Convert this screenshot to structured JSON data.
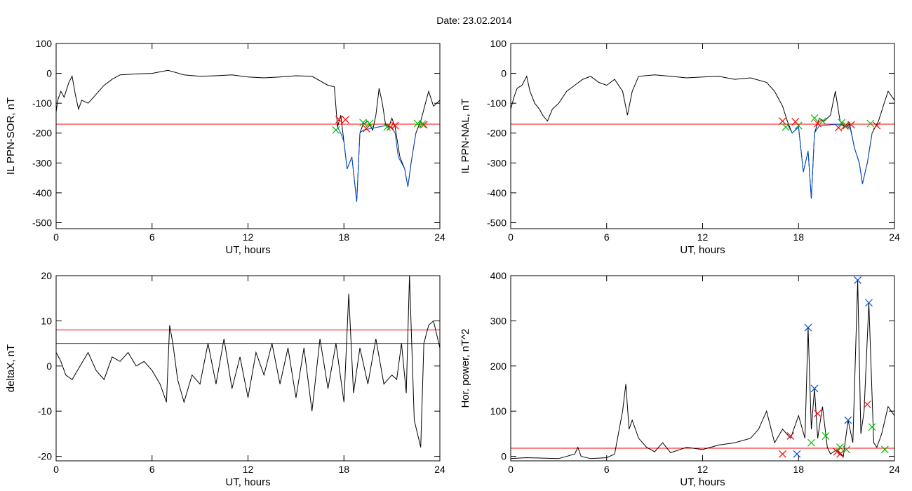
{
  "figure": {
    "title": "Date:  23.02.2014"
  },
  "chart_data": [
    {
      "id": "top-left",
      "type": "line",
      "title": "",
      "xlabel": "UT, hours",
      "ylabel": "IL PPN-SOR, nT",
      "xlim": [
        0,
        24
      ],
      "ylim": [
        -520,
        100
      ],
      "xticks": [
        0,
        6,
        12,
        18,
        24
      ],
      "yticks": [
        100,
        0,
        -100,
        -200,
        -300,
        -400,
        -500
      ],
      "threshold_lines": [
        {
          "color": "#ff0000",
          "y": -170
        }
      ],
      "series": [
        {
          "color": "#000000",
          "x": [
            0,
            0.1,
            0.3,
            0.5,
            0.8,
            1.0,
            1.2,
            1.4,
            1.6,
            2.0,
            2.5,
            3.0,
            3.5,
            4.0,
            5.0,
            6.0,
            7.0,
            8.0,
            9.0,
            10.0,
            11.0,
            12.0,
            13.0,
            14.0,
            15.0,
            16.0,
            17.0,
            17.4,
            17.6,
            17.8,
            18.0,
            18.2,
            18.5,
            18.8,
            19.0,
            19.2,
            19.5,
            19.8,
            20.0,
            20.2,
            20.4,
            20.6,
            20.8,
            21.0,
            21.2,
            21.5,
            21.8,
            22.0,
            22.2,
            22.5,
            22.8,
            23.0,
            23.3,
            23.6,
            24.0
          ],
          "y": [
            -130,
            -90,
            -60,
            -80,
            -30,
            -10,
            -70,
            -120,
            -90,
            -100,
            -70,
            -40,
            -20,
            -5,
            -2,
            0,
            10,
            -5,
            -10,
            -8,
            -5,
            -12,
            -15,
            -12,
            -8,
            -10,
            -40,
            -45,
            -180,
            -140,
            -230,
            -320,
            -280,
            -430,
            -200,
            -170,
            -160,
            -190,
            -140,
            -50,
            -100,
            -170,
            -180,
            -150,
            -180,
            -280,
            -320,
            -380,
            -300,
            -200,
            -160,
            -120,
            -60,
            -110,
            -90
          ]
        },
        {
          "color": "#0050d0",
          "x": [
            17.6,
            17.8,
            18.0,
            18.2,
            18.5,
            18.7,
            18.8,
            19.0,
            19.2,
            20.6,
            20.8,
            21.0,
            21.2,
            21.4,
            21.6,
            21.8,
            22.0,
            22.2,
            22.5
          ],
          "y": [
            -180,
            -200,
            -230,
            -320,
            -280,
            -380,
            -430,
            -200,
            -190,
            -175,
            -185,
            -180,
            -200,
            -280,
            -300,
            -320,
            -380,
            -300,
            -200
          ]
        }
      ],
      "markers": [
        {
          "color": "#ff0000",
          "x": [
            17.7,
            18.1,
            19.4,
            20.9,
            21.2,
            23.0
          ],
          "y": [
            -155,
            -155,
            -185,
            -180,
            -175,
            -172
          ]
        },
        {
          "color": "#00bb00",
          "x": [
            17.5,
            19.2,
            19.6,
            20.7,
            22.6,
            22.9
          ],
          "y": [
            -190,
            -165,
            -168,
            -180,
            -168,
            -170
          ]
        }
      ]
    },
    {
      "id": "top-right",
      "type": "line",
      "title": "",
      "xlabel": "UT, hours",
      "ylabel": "IL PPN-NAL, nT",
      "xlim": [
        0,
        24
      ],
      "ylim": [
        -520,
        100
      ],
      "xticks": [
        0,
        6,
        12,
        18,
        24
      ],
      "yticks": [
        100,
        0,
        -100,
        -200,
        -300,
        -400,
        -500
      ],
      "threshold_lines": [
        {
          "color": "#ff0000",
          "y": -170
        }
      ],
      "series": [
        {
          "color": "#000000",
          "x": [
            0,
            0.2,
            0.4,
            0.7,
            1.0,
            1.2,
            1.5,
            1.8,
            2.0,
            2.3,
            2.6,
            3.0,
            3.5,
            4.0,
            4.5,
            5.0,
            5.5,
            6.0,
            6.5,
            7.0,
            7.3,
            7.6,
            8.0,
            9.0,
            10.0,
            11.0,
            12.0,
            13.0,
            14.0,
            15.0,
            16.0,
            16.5,
            17.0,
            17.3,
            17.6,
            18.0,
            18.3,
            18.6,
            18.8,
            19.0,
            19.3,
            19.6,
            20.0,
            20.3,
            20.6,
            20.9,
            21.2,
            21.5,
            21.8,
            22.0,
            22.3,
            22.6,
            23.0,
            23.3,
            23.6,
            24.0
          ],
          "y": [
            -120,
            -80,
            -50,
            -40,
            -10,
            -60,
            -100,
            -120,
            -140,
            -160,
            -120,
            -100,
            -60,
            -40,
            -20,
            -10,
            -30,
            -40,
            -20,
            -60,
            -140,
            -60,
            -10,
            -5,
            -10,
            -15,
            -12,
            -10,
            -20,
            -15,
            -30,
            -60,
            -110,
            -160,
            -200,
            -180,
            -330,
            -260,
            -420,
            -200,
            -150,
            -160,
            -140,
            -60,
            -160,
            -180,
            -170,
            -250,
            -300,
            -370,
            -300,
            -200,
            -160,
            -110,
            -60,
            -90
          ]
        },
        {
          "color": "#0050d0",
          "x": [
            17.3,
            17.6,
            18.0,
            18.3,
            18.6,
            18.8,
            19.0,
            19.3,
            20.6,
            20.9,
            21.2,
            21.5,
            21.8,
            22.0,
            22.3,
            22.6
          ],
          "y": [
            -170,
            -200,
            -180,
            -330,
            -260,
            -420,
            -200,
            -175,
            -170,
            -180,
            -175,
            -250,
            -300,
            -370,
            -300,
            -200
          ]
        }
      ],
      "markers": [
        {
          "color": "#ff0000",
          "x": [
            17.0,
            17.8,
            19.2,
            20.5,
            20.9,
            21.3,
            22.9
          ],
          "y": [
            -160,
            -162,
            -168,
            -182,
            -176,
            -172,
            -175
          ]
        },
        {
          "color": "#00bb00",
          "x": [
            17.2,
            18.0,
            19.0,
            19.5,
            20.7,
            21.0,
            22.5
          ],
          "y": [
            -180,
            -175,
            -150,
            -160,
            -165,
            -175,
            -168
          ]
        }
      ]
    },
    {
      "id": "bottom-left",
      "type": "line",
      "title": "",
      "xlabel": "UT, hours",
      "ylabel": "deltaX, nT",
      "xlim": [
        0,
        24
      ],
      "ylim": [
        -21,
        20
      ],
      "xticks": [
        0,
        6,
        12,
        18,
        24
      ],
      "yticks": [
        20,
        10,
        0,
        -10,
        -20
      ],
      "threshold_lines": [
        {
          "color": "#ff0000",
          "y": 8
        },
        {
          "color": "#0050d0",
          "y": 5
        }
      ],
      "series": [
        {
          "color": "#000000",
          "x": [
            0,
            0.3,
            0.6,
            1.0,
            1.5,
            2.0,
            2.5,
            3.0,
            3.5,
            4.0,
            4.5,
            5.0,
            5.5,
            6.0,
            6.5,
            6.9,
            7.1,
            7.3,
            7.6,
            8.0,
            8.5,
            9.0,
            9.5,
            10.0,
            10.5,
            11.0,
            11.5,
            12.0,
            12.5,
            13.0,
            13.5,
            14.0,
            14.5,
            15.0,
            15.5,
            16.0,
            16.5,
            17.0,
            17.5,
            18.0,
            18.3,
            18.6,
            19.0,
            19.5,
            20.0,
            20.5,
            21.0,
            21.3,
            21.6,
            21.9,
            22.1,
            22.4,
            22.8,
            23.0,
            23.3,
            23.6,
            24.0
          ],
          "y": [
            3,
            1,
            -2,
            -3,
            0,
            3,
            -1,
            -3,
            2,
            1,
            3,
            0,
            1,
            -1,
            -4,
            -8,
            9,
            5,
            -3,
            -8,
            -2,
            -4,
            5,
            -4,
            6,
            -5,
            2,
            -7,
            3,
            -2,
            5,
            -4,
            4,
            -7,
            4,
            -10,
            6,
            -5,
            5,
            -8,
            16,
            -6,
            4,
            -4,
            6,
            -4,
            -2,
            -3,
            5,
            -6,
            20,
            -12,
            -18,
            5,
            9,
            10,
            4
          ]
        }
      ],
      "markers": []
    },
    {
      "id": "bottom-right",
      "type": "line",
      "title": "",
      "xlabel": "UT, hours",
      "ylabel": "Hor. power, nT^2",
      "xlim": [
        0,
        24
      ],
      "ylim": [
        -10,
        400
      ],
      "xticks": [
        0,
        6,
        12,
        18,
        24
      ],
      "yticks": [
        400,
        300,
        200,
        100,
        0
      ],
      "threshold_lines": [
        {
          "color": "#ff0000",
          "y": 18
        }
      ],
      "series": [
        {
          "color": "#000000",
          "x": [
            0,
            1,
            2,
            3,
            4,
            4.2,
            4.4,
            5,
            6,
            6.5,
            7.0,
            7.2,
            7.4,
            7.6,
            8.0,
            8.5,
            9.0,
            9.5,
            10.0,
            11.0,
            12.0,
            13.0,
            14.0,
            15.0,
            15.5,
            16.0,
            16.5,
            17.0,
            17.5,
            18.0,
            18.4,
            18.6,
            18.8,
            19.0,
            19.2,
            19.5,
            19.8,
            20.0,
            20.4,
            20.8,
            21.1,
            21.4,
            21.7,
            21.9,
            22.1,
            22.4,
            22.7,
            22.9,
            23.2,
            23.6,
            24.0
          ],
          "y": [
            -5,
            -3,
            -4,
            -5,
            5,
            20,
            0,
            -5,
            -3,
            5,
            100,
            160,
            60,
            80,
            40,
            20,
            10,
            30,
            8,
            20,
            15,
            25,
            30,
            40,
            60,
            100,
            30,
            60,
            40,
            90,
            40,
            285,
            60,
            150,
            40,
            110,
            20,
            5,
            15,
            0,
            80,
            30,
            390,
            50,
            100,
            340,
            30,
            20,
            50,
            110,
            90
          ]
        }
      ],
      "markers": [
        {
          "color": "#0050d0",
          "x": [
            18.6,
            19.0,
            21.7,
            22.4,
            17.9,
            21.1
          ],
          "y": [
            285,
            150,
            390,
            340,
            5,
            80
          ]
        },
        {
          "color": "#ff0000",
          "x": [
            17.5,
            19.2,
            20.4,
            20.6,
            22.3,
            17.0
          ],
          "y": [
            45,
            95,
            10,
            5,
            115,
            5
          ]
        },
        {
          "color": "#00bb00",
          "x": [
            18.8,
            19.7,
            20.6,
            21.0,
            22.6,
            23.4
          ],
          "y": [
            30,
            45,
            20,
            15,
            65,
            15
          ]
        }
      ]
    }
  ]
}
